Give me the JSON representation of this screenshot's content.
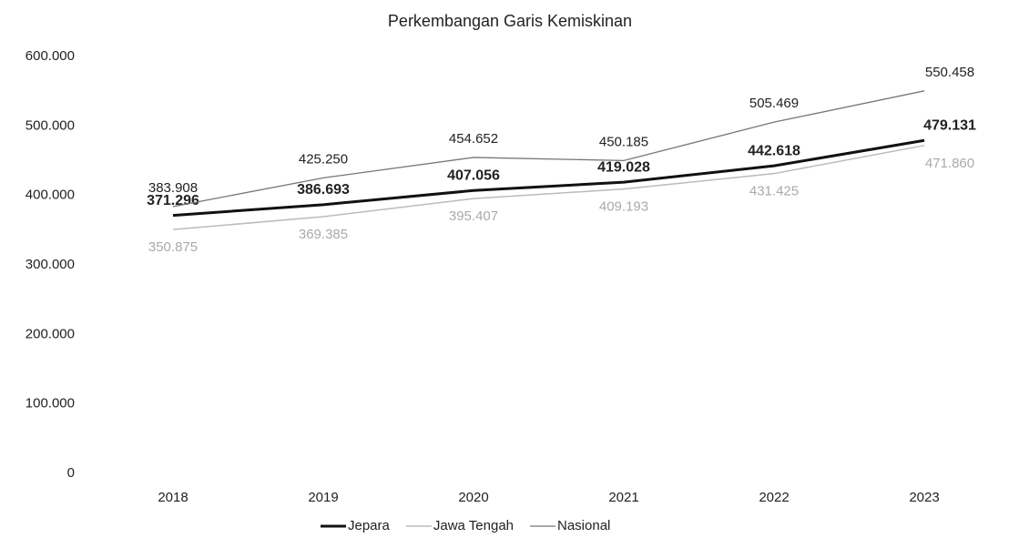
{
  "chart_data": {
    "type": "line",
    "title": "Perkembangan Garis Kemiskinan",
    "categories": [
      "2018",
      "2019",
      "2020",
      "2021",
      "2022",
      "2023"
    ],
    "series": [
      {
        "name": "Jepara",
        "color": "#111111",
        "values": [
          371296,
          386693,
          407056,
          419028,
          442618,
          479131
        ],
        "value_labels": [
          "371.296",
          "386.693",
          "407.056",
          "419.028",
          "442.618",
          "479.131"
        ]
      },
      {
        "name": "Jawa Tengah",
        "color": "#bbbbbb",
        "values": [
          350875,
          369385,
          395407,
          409193,
          431425,
          471860
        ],
        "value_labels": [
          "350.875",
          "369.385",
          "395.407",
          "409.193",
          "431.425",
          "471.860"
        ]
      },
      {
        "name": "Nasional",
        "color": "#777777",
        "values": [
          383908,
          425250,
          454652,
          450185,
          505469,
          550458
        ],
        "value_labels": [
          "383.908",
          "425.250",
          "454.652",
          "450.185",
          "505.469",
          "550.458"
        ]
      }
    ],
    "ylim": [
      0,
      600000
    ],
    "yticks": [
      0,
      {
        "value": 100000,
        "label": "100.000"
      },
      {
        "value": 200000,
        "label": "200.000"
      },
      {
        "value": 300000,
        "label": "300.000"
      },
      {
        "value": 400000,
        "label": "400.000"
      },
      {
        "value": 500000,
        "label": "500.000"
      },
      {
        "value": 600000,
        "label": "600.000"
      }
    ],
    "grid": false
  }
}
